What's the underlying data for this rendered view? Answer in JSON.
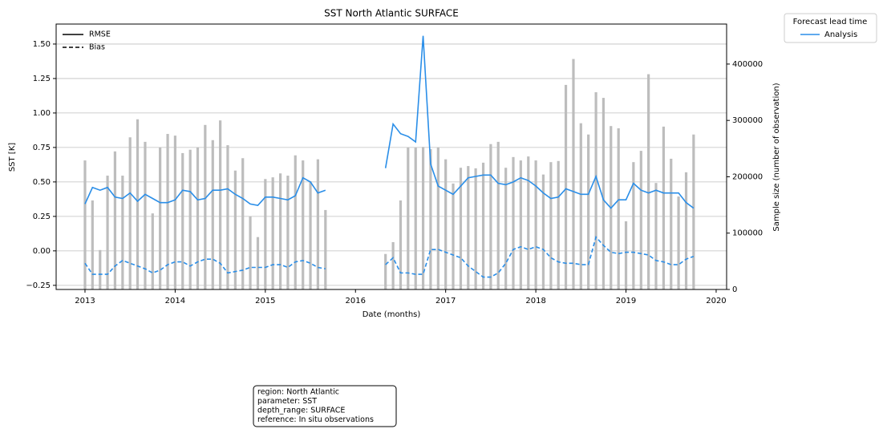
{
  "chart_data": {
    "type": "line",
    "title": "SST North Atlantic SURFACE",
    "x_label": "Date (months)",
    "y_label": "SST [K]",
    "y2_label": "Sample size (number of observation)",
    "x": [
      2013.0,
      2013.083,
      2013.167,
      2013.25,
      2013.333,
      2013.417,
      2013.5,
      2013.583,
      2013.667,
      2013.75,
      2013.833,
      2013.917,
      2014.0,
      2014.083,
      2014.167,
      2014.25,
      2014.333,
      2014.417,
      2014.5,
      2014.583,
      2014.667,
      2014.75,
      2014.833,
      2014.917,
      2015.0,
      2015.083,
      2015.167,
      2015.25,
      2015.333,
      2015.417,
      2015.5,
      2015.583,
      2015.667,
      2015.75,
      2015.833,
      2015.917,
      2016.0,
      2016.083,
      2016.167,
      2016.25,
      2016.333,
      2016.417,
      2016.5,
      2016.583,
      2016.667,
      2016.75,
      2016.833,
      2016.917,
      2017.0,
      2017.083,
      2017.167,
      2017.25,
      2017.333,
      2017.417,
      2017.5,
      2017.583,
      2017.667,
      2017.75,
      2017.833,
      2017.917,
      2018.0,
      2018.083,
      2018.167,
      2018.25,
      2018.333,
      2018.417,
      2018.5,
      2018.583,
      2018.667,
      2018.75,
      2018.833,
      2018.917,
      2019.0,
      2019.083,
      2019.167,
      2019.25,
      2019.333,
      2019.417,
      2019.5,
      2019.583,
      2019.667,
      2019.75
    ],
    "color": "#2a8ee8",
    "series": [
      {
        "name": "RMSE",
        "dashed": false,
        "values": [
          0.34,
          0.46,
          0.44,
          0.46,
          0.39,
          0.38,
          0.42,
          0.36,
          0.41,
          0.38,
          0.35,
          0.35,
          0.37,
          0.44,
          0.43,
          0.37,
          0.38,
          0.44,
          0.44,
          0.45,
          0.41,
          0.38,
          0.34,
          0.33,
          0.39,
          0.39,
          0.38,
          0.37,
          0.4,
          0.53,
          0.5,
          0.42,
          0.44,
          null,
          null,
          null,
          null,
          null,
          null,
          null,
          0.6,
          0.92,
          0.85,
          0.83,
          0.79,
          1.56,
          0.63,
          0.47,
          0.44,
          0.41,
          0.47,
          0.53,
          0.54,
          0.55,
          0.55,
          0.49,
          0.48,
          0.5,
          0.53,
          0.51,
          0.47,
          0.42,
          0.38,
          0.39,
          0.45,
          0.43,
          0.41,
          0.41,
          0.54,
          0.37,
          0.31,
          0.37,
          0.37,
          0.49,
          0.44,
          0.42,
          0.44,
          0.42,
          0.42,
          0.42,
          0.35,
          0.31
        ]
      },
      {
        "name": "Bias",
        "dashed": true,
        "values": [
          -0.09,
          -0.17,
          -0.17,
          -0.17,
          -0.11,
          -0.07,
          -0.09,
          -0.11,
          -0.13,
          -0.16,
          -0.14,
          -0.1,
          -0.08,
          -0.08,
          -0.11,
          -0.08,
          -0.06,
          -0.06,
          -0.09,
          -0.16,
          -0.15,
          -0.14,
          -0.12,
          -0.12,
          -0.12,
          -0.1,
          -0.1,
          -0.12,
          -0.08,
          -0.07,
          -0.09,
          -0.12,
          -0.13,
          null,
          null,
          null,
          null,
          null,
          null,
          null,
          -0.1,
          -0.05,
          -0.16,
          -0.16,
          -0.17,
          -0.17,
          0.01,
          0.01,
          -0.01,
          -0.03,
          -0.05,
          -0.11,
          -0.15,
          -0.19,
          -0.19,
          -0.16,
          -0.09,
          0.01,
          0.03,
          0.01,
          0.03,
          0.01,
          -0.05,
          -0.08,
          -0.09,
          -0.09,
          -0.1,
          -0.1,
          0.1,
          0.04,
          -0.01,
          -0.02,
          -0.01,
          -0.01,
          -0.02,
          -0.03,
          -0.07,
          -0.08,
          -0.1,
          -0.1,
          -0.06,
          -0.04
        ]
      }
    ],
    "sample_size": {
      "axis": "y2",
      "color": "#bdbdbd",
      "values": [
        229000,
        158000,
        70000,
        202000,
        245000,
        202000,
        270000,
        302000,
        262000,
        135000,
        252000,
        276000,
        273000,
        242000,
        248000,
        252000,
        292000,
        265000,
        300000,
        256000,
        211000,
        233000,
        130000,
        93000,
        196000,
        199000,
        206000,
        202000,
        238000,
        229000,
        192000,
        231000,
        141000,
        null,
        null,
        null,
        null,
        null,
        null,
        null,
        63000,
        84000,
        158000,
        252000,
        252000,
        253000,
        249000,
        252000,
        231000,
        188000,
        216000,
        219000,
        215000,
        225000,
        258000,
        262000,
        216000,
        235000,
        229000,
        236000,
        229000,
        204000,
        226000,
        228000,
        363000,
        409000,
        295000,
        275000,
        350000,
        340000,
        290000,
        286000,
        121000,
        226000,
        246000,
        382000,
        189000,
        289000,
        232000,
        165000,
        208000,
        275000
      ]
    },
    "xlim": [
      2012.68,
      2020.116
    ],
    "xticks": [
      2013,
      2014,
      2015,
      2016,
      2017,
      2018,
      2019,
      2020
    ],
    "ylim": [
      -0.28,
      1.645
    ],
    "yticks": [
      {
        "value": -0.25,
        "label": "−0.25"
      },
      {
        "value": 0,
        "label": "0.00"
      },
      {
        "value": 0.25,
        "label": "0.25"
      },
      {
        "value": 0.5,
        "label": "0.50"
      },
      {
        "value": 0.75,
        "label": "0.75"
      },
      {
        "value": 1,
        "label": "1.00"
      },
      {
        "value": 1.25,
        "label": "1.25"
      },
      {
        "value": 1.5,
        "label": "1.50"
      }
    ],
    "y2lim": [
      0,
      471000
    ],
    "y2ticks": [
      0,
      100000,
      200000,
      300000,
      400000
    ],
    "grid": true,
    "legend_position": "upper-left",
    "lead_legend": {
      "title": "Forecast lead time",
      "entry": "Analysis"
    },
    "info_box": [
      "region: North Atlantic",
      "parameter: SST",
      "depth_range: SURFACE",
      "reference: In situ observations"
    ]
  }
}
